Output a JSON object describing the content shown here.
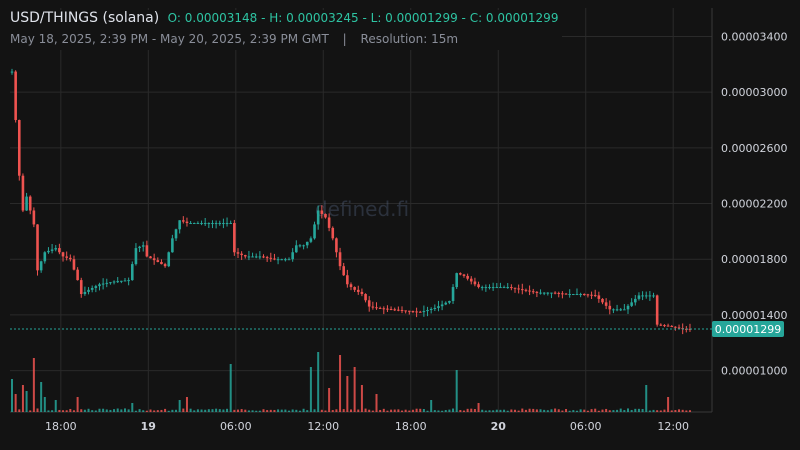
{
  "header": {
    "symbol": "USD/THINGS (solana)",
    "open": "O: 0.00003148",
    "high": "H: 0.00003245",
    "low": "L: 0.00001299",
    "close": "C: 0.00001299",
    "date_range": "May 18, 2025, 2:39 PM - May 20, 2025, 2:39 PM GMT",
    "separator": "|",
    "resolution": "Resolution: 15m"
  },
  "watermark": "defined.fi",
  "colors": {
    "up": "#26a69a",
    "down": "#ef5350",
    "background": "#131313",
    "grid": "#2a2a2a",
    "text": "#d1d4dc",
    "last_price_badge": "#26a69a"
  },
  "chart_data": {
    "type": "candlestick",
    "title": "USD/THINGS (solana)",
    "resolution": "15m",
    "xlabel": "",
    "ylabel": "",
    "ylim": [
      8.6e-06,
      3.47e-05
    ],
    "y_ticks": [
      "0.00003400",
      "0.00003000",
      "0.00002600",
      "0.00002200",
      "0.00001800",
      "0.00001400",
      "0.00001000"
    ],
    "x_ticks": [
      {
        "label": "18:00",
        "hour": 3.35,
        "bold": false
      },
      {
        "label": "19",
        "hour": 9.35,
        "bold": true
      },
      {
        "label": "06:00",
        "hour": 15.35,
        "bold": false
      },
      {
        "label": "12:00",
        "hour": 21.35,
        "bold": false
      },
      {
        "label": "18:00",
        "hour": 27.35,
        "bold": false
      },
      {
        "label": "20",
        "hour": 33.35,
        "bold": true
      },
      {
        "label": "06:00",
        "hour": 39.35,
        "bold": false
      },
      {
        "label": "12:00",
        "hour": 45.35,
        "bold": false
      }
    ],
    "last_price": "0.00001299",
    "grid": true,
    "volume_units": "relative",
    "anchors": [
      [
        0.0,
        3.148e-05
      ],
      [
        0.25,
        2.8e-05
      ],
      [
        0.5,
        2.4e-05
      ],
      [
        0.75,
        2.15e-05
      ],
      [
        1.0,
        2.25e-05
      ],
      [
        1.5,
        2.05e-05
      ],
      [
        1.75,
        1.72e-05
      ],
      [
        2.25,
        1.85e-05
      ],
      [
        3.0,
        1.88e-05
      ],
      [
        3.5,
        1.82e-05
      ],
      [
        4.0,
        1.8e-05
      ],
      [
        4.5,
        1.65e-05
      ],
      [
        4.75,
        1.55e-05
      ],
      [
        5.25,
        1.58e-05
      ],
      [
        6.0,
        1.62e-05
      ],
      [
        7.0,
        1.64e-05
      ],
      [
        8.0,
        1.65e-05
      ],
      [
        8.5,
        1.88e-05
      ],
      [
        9.0,
        1.9e-05
      ],
      [
        9.25,
        1.82e-05
      ],
      [
        10.0,
        1.78e-05
      ],
      [
        10.5,
        1.75e-05
      ],
      [
        11.0,
        1.95e-05
      ],
      [
        11.5,
        2.08e-05
      ],
      [
        12.0,
        2.06e-05
      ],
      [
        13.0,
        2.06e-05
      ],
      [
        14.0,
        2.06e-05
      ],
      [
        15.0,
        2.06e-05
      ],
      [
        15.25,
        1.85e-05
      ],
      [
        16.0,
        1.82e-05
      ],
      [
        17.0,
        1.82e-05
      ],
      [
        18.0,
        1.8e-05
      ],
      [
        19.0,
        1.8e-05
      ],
      [
        19.5,
        1.9e-05
      ],
      [
        20.0,
        1.9e-05
      ],
      [
        20.5,
        1.95e-05
      ],
      [
        21.0,
        2.15e-05
      ],
      [
        21.5,
        2.1e-05
      ],
      [
        22.0,
        1.95e-05
      ],
      [
        22.5,
        1.75e-05
      ],
      [
        23.0,
        1.62e-05
      ],
      [
        23.5,
        1.58e-05
      ],
      [
        24.0,
        1.55e-05
      ],
      [
        24.5,
        1.46e-05
      ],
      [
        25.0,
        1.45e-05
      ],
      [
        26.0,
        1.44e-05
      ],
      [
        27.0,
        1.43e-05
      ],
      [
        28.0,
        1.42e-05
      ],
      [
        29.0,
        1.45e-05
      ],
      [
        30.0,
        1.5e-05
      ],
      [
        30.5,
        1.7e-05
      ],
      [
        31.0,
        1.68e-05
      ],
      [
        32.0,
        1.6e-05
      ],
      [
        33.0,
        1.6e-05
      ],
      [
        34.0,
        1.6e-05
      ],
      [
        35.0,
        1.58e-05
      ],
      [
        36.0,
        1.56e-05
      ],
      [
        37.0,
        1.56e-05
      ],
      [
        38.0,
        1.55e-05
      ],
      [
        39.0,
        1.55e-05
      ],
      [
        40.0,
        1.54e-05
      ],
      [
        41.0,
        1.44e-05
      ],
      [
        42.0,
        1.44e-05
      ],
      [
        43.0,
        1.54e-05
      ],
      [
        44.0,
        1.54e-05
      ],
      [
        44.25,
        1.33e-05
      ],
      [
        45.0,
        1.32e-05
      ],
      [
        46.0,
        1.3e-05
      ],
      [
        46.5,
        1.299e-05
      ]
    ],
    "volume_spikes": [
      [
        0.0,
        0.55
      ],
      [
        0.25,
        0.3
      ],
      [
        0.75,
        0.45
      ],
      [
        1.0,
        0.35
      ],
      [
        1.5,
        0.9
      ],
      [
        2.0,
        0.5
      ],
      [
        2.25,
        0.25
      ],
      [
        3.0,
        0.2
      ],
      [
        4.5,
        0.25
      ],
      [
        8.25,
        0.15
      ],
      [
        11.5,
        0.2
      ],
      [
        12.0,
        0.25
      ],
      [
        15.0,
        0.8
      ],
      [
        20.5,
        0.75
      ],
      [
        21.0,
        1.0
      ],
      [
        21.75,
        0.4
      ],
      [
        22.5,
        0.95
      ],
      [
        23.0,
        0.6
      ],
      [
        23.5,
        0.75
      ],
      [
        24.0,
        0.45
      ],
      [
        25.0,
        0.3
      ],
      [
        28.75,
        0.2
      ],
      [
        30.5,
        0.7
      ],
      [
        32.0,
        0.15
      ],
      [
        43.5,
        0.45
      ],
      [
        45.0,
        0.25
      ]
    ]
  }
}
